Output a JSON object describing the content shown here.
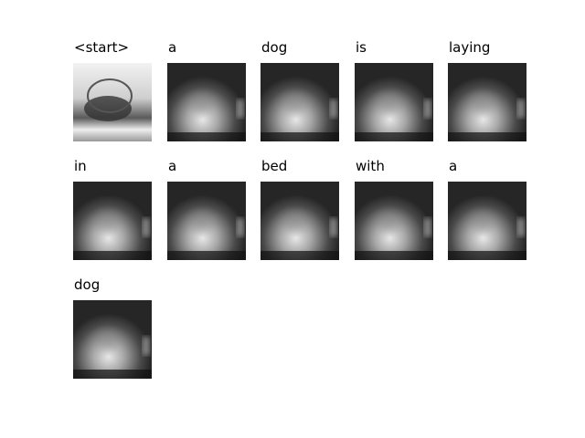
{
  "words": [
    "<start>",
    "a",
    "dog",
    "is",
    "laying",
    "in",
    "a",
    "bed",
    "with",
    "a",
    "dog"
  ]
}
